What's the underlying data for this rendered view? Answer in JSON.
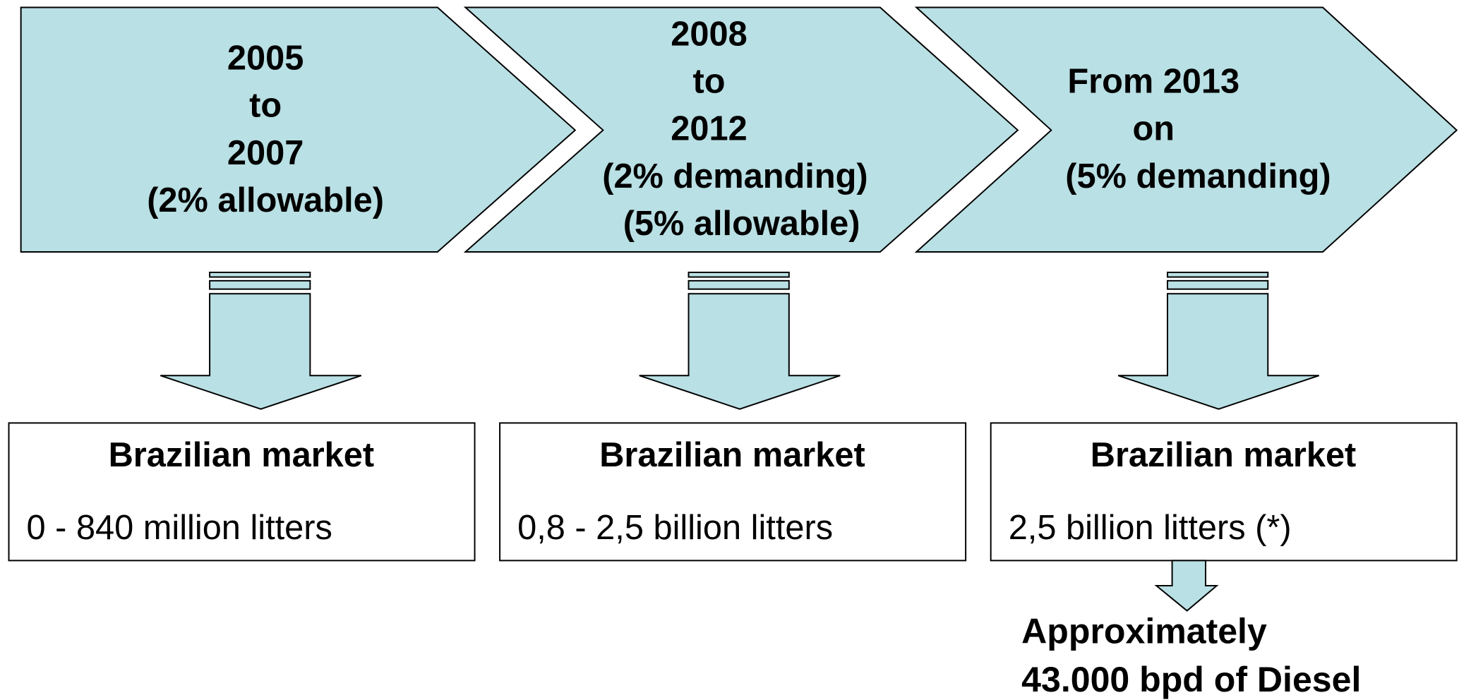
{
  "stages": [
    {
      "lines": [
        "2005",
        "to",
        "2007",
        "(2% allowable)"
      ]
    },
    {
      "lines": [
        "2008",
        "to",
        "2012",
        "(2% demanding)",
        "(5% allowable)"
      ]
    },
    {
      "lines": [
        "From 2013",
        "on",
        "(5% demanding)"
      ]
    }
  ],
  "markets": [
    {
      "title": "Brazilian market",
      "value": "0 - 840 million litters"
    },
    {
      "title": "Brazilian market",
      "value": "0,8 - 2,5 billion litters"
    },
    {
      "title": "Brazilian market",
      "value": "2,5 billion litters (*)"
    }
  ],
  "note": {
    "lines": [
      "Approximately",
      "43.000 bpd of Diesel"
    ]
  }
}
